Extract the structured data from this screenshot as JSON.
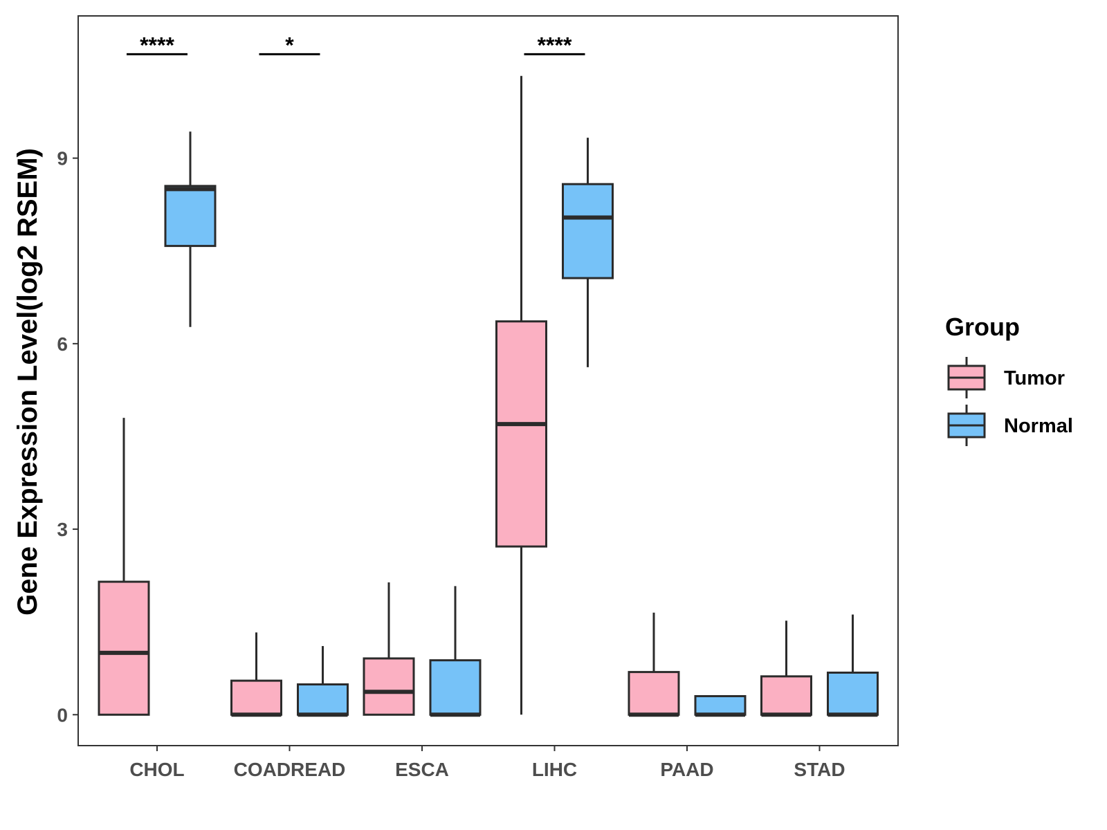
{
  "chart_data": {
    "type": "boxplot",
    "title": "",
    "xlabel": "",
    "ylabel": "Gene Expression Level(log2 RSEM)",
    "ylim": [
      -0.5,
      11.3
    ],
    "yticks": [
      0,
      3,
      6,
      9
    ],
    "grid": false,
    "legend_position": "right",
    "legend_title": "Group",
    "categories": [
      "CHOL",
      "COADREAD",
      "ESCA",
      "LIHC",
      "PAAD",
      "STAD"
    ],
    "series": [
      {
        "name": "Tumor",
        "color": "#FBB0C2",
        "boxes": [
          {
            "whisker_low": 0,
            "q1": 0,
            "median": 1.0,
            "q3": 2.15,
            "whisker_high": 4.8
          },
          {
            "whisker_low": 0,
            "q1": 0,
            "median": 0,
            "q3": 0.55,
            "whisker_high": 1.33
          },
          {
            "whisker_low": 0,
            "q1": 0,
            "median": 0.37,
            "q3": 0.91,
            "whisker_high": 2.14
          },
          {
            "whisker_low": 0,
            "q1": 2.72,
            "median": 4.7,
            "q3": 6.36,
            "whisker_high": 10.33
          },
          {
            "whisker_low": 0,
            "q1": 0,
            "median": 0,
            "q3": 0.69,
            "whisker_high": 1.65
          },
          {
            "whisker_low": 0,
            "q1": 0,
            "median": 0,
            "q3": 0.62,
            "whisker_high": 1.52
          }
        ]
      },
      {
        "name": "Normal",
        "color": "#76C2F8",
        "boxes": [
          {
            "whisker_low": 6.27,
            "q1": 7.58,
            "median": 8.5,
            "q3": 8.55,
            "whisker_high": 9.43
          },
          {
            "whisker_low": 0,
            "q1": 0,
            "median": 0,
            "q3": 0.49,
            "whisker_high": 1.11
          },
          {
            "whisker_low": 0,
            "q1": 0,
            "median": 0,
            "q3": 0.88,
            "whisker_high": 2.08
          },
          {
            "whisker_low": 5.62,
            "q1": 7.06,
            "median": 8.04,
            "q3": 8.58,
            "whisker_high": 9.33
          },
          {
            "whisker_low": 0,
            "q1": 0,
            "median": 0,
            "q3": 0.3,
            "whisker_high": 0.3
          },
          {
            "whisker_low": 0,
            "q1": 0,
            "median": 0,
            "q3": 0.68,
            "whisker_high": 1.62
          }
        ]
      }
    ],
    "significance": [
      {
        "category": "CHOL",
        "label": "****",
        "y": 10.68
      },
      {
        "category": "COADREAD",
        "label": "*",
        "y": 10.68
      },
      {
        "category": "LIHC",
        "label": "****",
        "y": 10.68
      }
    ]
  }
}
